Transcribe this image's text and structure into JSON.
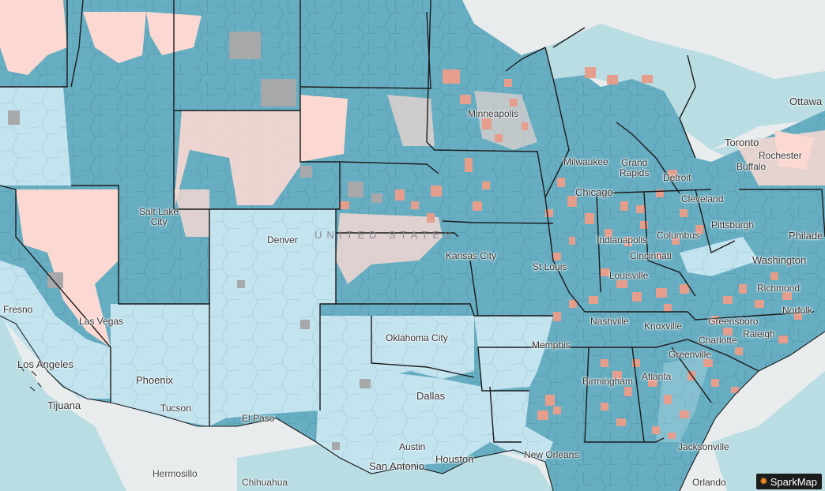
{
  "colors": {
    "background": "#e9ecec",
    "water": "#b9dde2",
    "county_mid": "#68aec2",
    "county_light": "#c3e3ee",
    "county_pink": "#fbd9d2",
    "county_salmon": "#e59d8c",
    "county_gray": "#a6a8aa",
    "border": "#1a1a1a"
  },
  "labels": {
    "fresno": "Fresno",
    "las_vegas": "Las Vegas",
    "los_angeles": "Los Angeles",
    "tijuana": "Tijuana",
    "phoenix": "Phoenix",
    "tucson": "Tucson",
    "hermosillo": "Hermosillo",
    "chihuahua": "Chihuahua",
    "el_paso": "El Paso",
    "salt_lake_city": "Salt Lake\nCity",
    "denver": "Denver",
    "oklahoma_city": "Oklahoma City",
    "dallas": "Dallas",
    "austin": "Austin",
    "san_antonio": "San Antonio",
    "houston": "Houston",
    "new_orleans": "New Orleans",
    "memphis": "Memphis",
    "kansas_city": "Kansas City",
    "st_louis": "St Louis",
    "minneapolis": "Minneapolis",
    "milwaukee": "Milwaukee",
    "chicago": "Chicago",
    "grand_rapids": "Grand\nRapids",
    "detroit": "Detroit",
    "indianapolis": "Indianapolis",
    "columbus": "Columbus",
    "cleveland": "Cleveland",
    "cincinnati": "Cincinnati",
    "louisville": "Louisville",
    "nashville": "Nashville",
    "knoxville": "Knoxville",
    "birmingham": "Birmingham",
    "atlanta": "Atlanta",
    "greenville": "Greenville",
    "charlotte": "Charlotte",
    "greensboro": "Greensboro",
    "raleigh": "Raleigh",
    "richmond": "Richmond",
    "norfolk": "Norfolk",
    "washington": "Washington",
    "philadelphia": "Philade",
    "pittsburgh": "Pittsburgh",
    "buffalo": "Buffalo",
    "rochester": "Rochester",
    "toronto": "Toronto",
    "ottawa": "Ottawa",
    "jacksonville": "Jacksonville",
    "orlando": "Orlando",
    "country": "UNITED STATES"
  },
  "attribution": {
    "brand": "SparkMap",
    "icon": "sparkmap-star-icon"
  }
}
